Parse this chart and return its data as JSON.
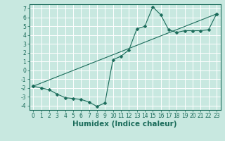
{
  "xlabel": "Humidex (Indice chaleur)",
  "xlim": [
    -0.5,
    23.5
  ],
  "ylim": [
    -4.5,
    7.5
  ],
  "yticks": [
    -4,
    -3,
    -2,
    -1,
    0,
    1,
    2,
    3,
    4,
    5,
    6,
    7
  ],
  "xticks": [
    0,
    1,
    2,
    3,
    4,
    5,
    6,
    7,
    8,
    9,
    10,
    11,
    12,
    13,
    14,
    15,
    16,
    17,
    18,
    19,
    20,
    21,
    22,
    23
  ],
  "line1_x": [
    0,
    1,
    2,
    3,
    4,
    5,
    6,
    7,
    8,
    9,
    10,
    11,
    12,
    13,
    14,
    15,
    16,
    17,
    18,
    19,
    20,
    21,
    22,
    23
  ],
  "line1_y": [
    -1.8,
    -2.0,
    -2.2,
    -2.7,
    -3.1,
    -3.2,
    -3.3,
    -3.6,
    -4.1,
    -3.7,
    1.2,
    1.6,
    2.3,
    4.7,
    5.0,
    7.2,
    6.3,
    4.6,
    4.3,
    4.5,
    4.5,
    4.5,
    4.6,
    6.4
  ],
  "line2_x": [
    0,
    23
  ],
  "line2_y": [
    -1.8,
    6.4
  ],
  "line_color": "#1a6b5a",
  "marker_color": "#1a6b5a",
  "bg_color": "#c8e8e0",
  "grid_color": "#ffffff",
  "tick_fontsize": 5.5,
  "xlabel_fontsize": 7.5,
  "marker_size": 2.5,
  "linewidth": 0.8
}
